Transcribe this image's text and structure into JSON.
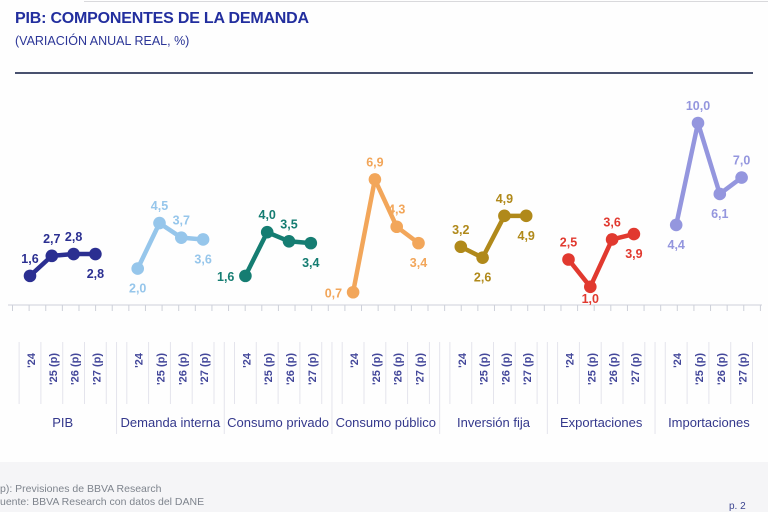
{
  "header": {
    "title": "PIB: COMPONENTES DE LA DEMANDA",
    "subtitle": "(VARIACIÓN ANUAL REAL, %)"
  },
  "footer": {
    "note": "p): Previsiones de BBVA Research",
    "source": "uente: BBVA Research con datos del DANE",
    "page_marker": "p. 2"
  },
  "chart_data": {
    "type": "line",
    "unit": "%",
    "decimal_separator": ",",
    "grid": false,
    "legend": "none",
    "baseline_value": 0,
    "ylim": [
      0,
      11
    ],
    "x_tick_labels": [
      "'24",
      "'25 (p)",
      "'26 (p)",
      "'27 (p)"
    ],
    "groups": [
      {
        "name": "PIB",
        "color": "#2b2f91",
        "values": [
          1.6,
          2.7,
          2.8,
          2.8
        ],
        "label_pos": [
          "above",
          "above",
          "above",
          "below"
        ]
      },
      {
        "name": "Demanda interna",
        "color": "#96c6eb",
        "values": [
          2.0,
          4.5,
          3.7,
          3.6
        ],
        "label_pos": [
          "below",
          "above",
          "above",
          "below"
        ]
      },
      {
        "name": "Consumo privado",
        "color": "#157d72",
        "values": [
          1.6,
          4.0,
          3.5,
          3.4
        ],
        "label_pos": [
          "left",
          "above",
          "above",
          "below"
        ]
      },
      {
        "name": "Consumo público",
        "color": "#f2a65a",
        "values": [
          0.7,
          6.9,
          4.3,
          3.4
        ],
        "label_pos": [
          "left",
          "above",
          "above",
          "below"
        ]
      },
      {
        "name": "Inversión fija",
        "color": "#b0891a",
        "values": [
          3.2,
          2.6,
          4.9,
          4.9
        ],
        "label_pos": [
          "above",
          "below",
          "above",
          "below"
        ]
      },
      {
        "name": "Exportaciones",
        "color": "#e1392f",
        "values": [
          2.5,
          1.0,
          3.6,
          3.9
        ],
        "label_pos": [
          "above",
          "below",
          "above",
          "below"
        ]
      },
      {
        "name": "Importaciones",
        "color": "#9496de",
        "values": [
          4.4,
          10.0,
          6.1,
          7.0
        ],
        "label_pos": [
          "below",
          "above",
          "below",
          "above"
        ]
      }
    ]
  }
}
